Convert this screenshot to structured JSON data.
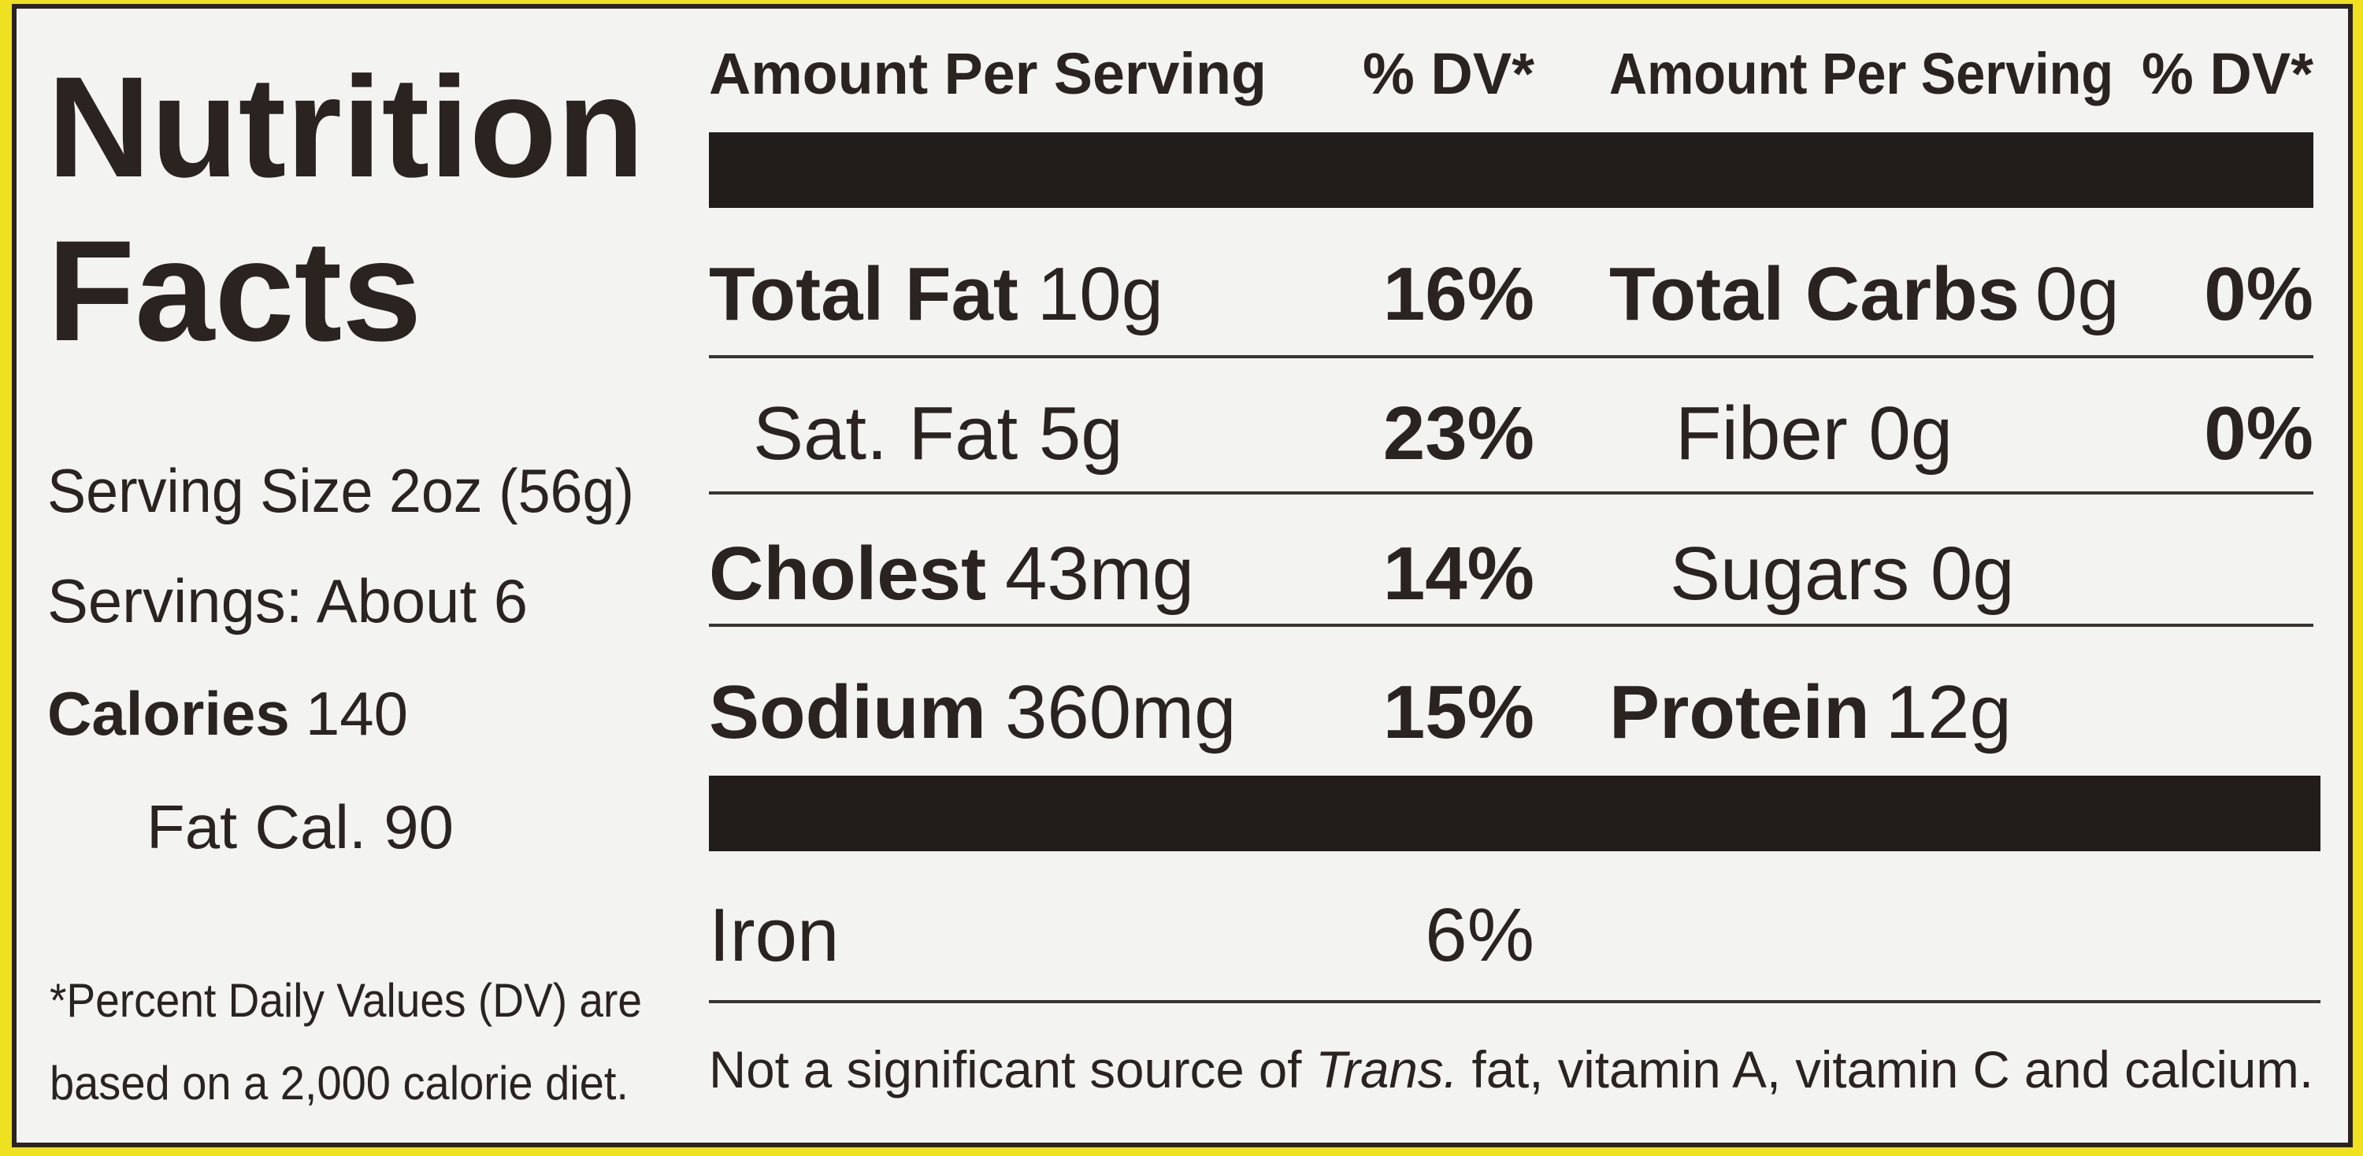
{
  "title": [
    "Nutrition",
    "Facts"
  ],
  "serving_size": "Serving Size 2oz (56g)",
  "servings": "Servings: About 6",
  "calories": {
    "label": "Calories",
    "amount": "140"
  },
  "fat_calories": "Fat Cal. 90",
  "footnote": [
    "*Percent Daily Values (DV) are",
    "based on a 2,000 calorie diet."
  ],
  "header": [
    "Amount Per Serving",
    "% DV*",
    "Amount Per Serving",
    "% DV*"
  ],
  "left_rows": [
    {
      "nutrient": "Total Fat",
      "amount": "10g",
      "dv": "16%"
    },
    {
      "nutrient": "Sat. Fat 5g",
      "dv": "23%"
    },
    {
      "nutrient": "Cholest",
      "amount": "43mg",
      "dv": "14%"
    },
    {
      "nutrient": "Sodium",
      "amount": "360mg",
      "dv": "15%"
    }
  ],
  "right_rows": [
    {
      "nutrient": "Total Carbs",
      "amount": "0g",
      "dv": "0%"
    },
    {
      "nutrient": "Fiber 0g",
      "dv": "0%"
    },
    {
      "nutrient": "Sugars 0g"
    },
    {
      "nutrient": "Protein",
      "amount": "12g"
    }
  ],
  "iron": {
    "nutrient": "Iron",
    "dv": "6%"
  },
  "note": [
    "Not a significant source of",
    "Trans.",
    "fat, vitamin A, vitamin C and calcium."
  ]
}
